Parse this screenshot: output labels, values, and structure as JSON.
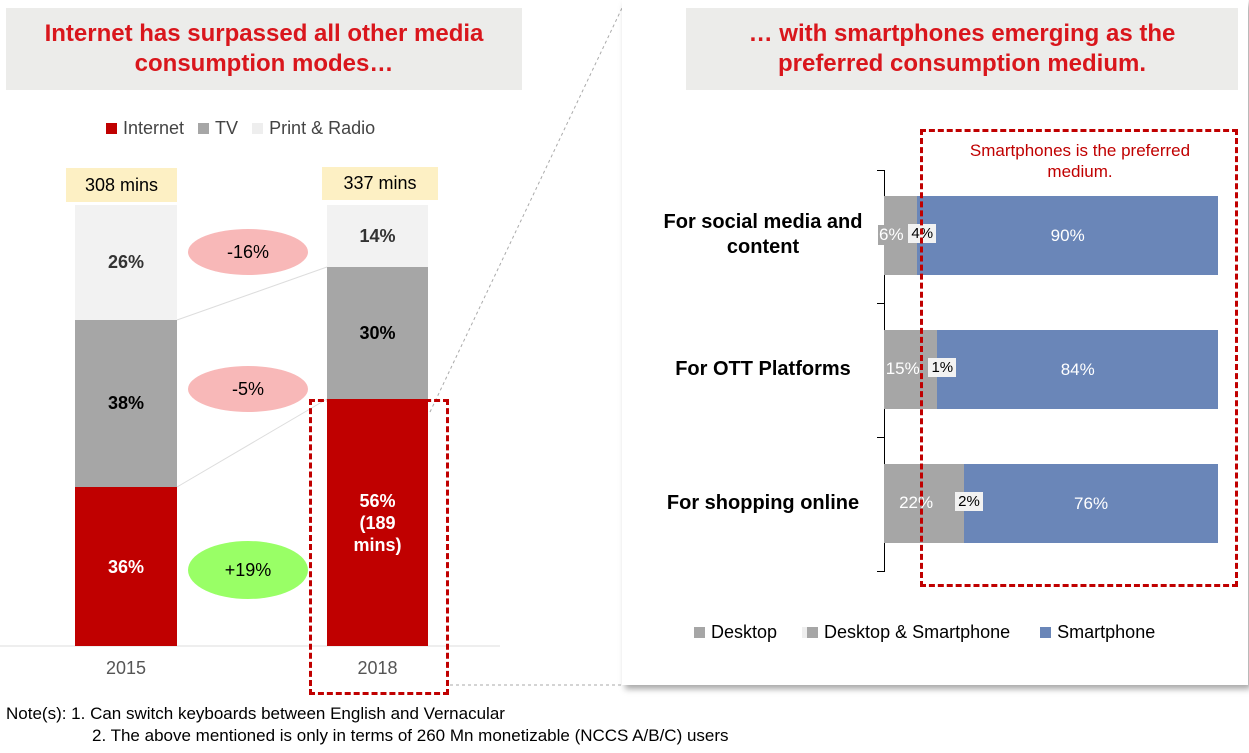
{
  "left": {
    "title": "Internet has surpassed all other media consumption modes…",
    "legend": [
      "Internet",
      "TV",
      "Print & Radio"
    ],
    "colors": {
      "Internet": "#c00000",
      "TV": "#a6a6a6",
      "Print & Radio": "#f2f2f2"
    }
  },
  "right": {
    "title": "… with smartphones emerging as the preferred consumption medium.",
    "callout": "Smartphones is the preferred medium.",
    "legend": [
      "Desktop",
      "Desktop & Smartphone",
      "Smartphone"
    ]
  },
  "notes": {
    "line1": "Note(s): 1. Can switch keyboards between English and Vernacular",
    "line2": "2. The above mentioned is only in terms of 260 Mn monetizable (NCCS A/B/C) users"
  },
  "chart_data": [
    {
      "type": "bar",
      "stacked": true,
      "title": "Internet has surpassed all other media consumption modes…",
      "categories": [
        "2015",
        "2018"
      ],
      "totals": [
        "308 mins",
        "337 mins"
      ],
      "series": [
        {
          "name": "Internet",
          "values": [
            36,
            56
          ],
          "labels": [
            "36%",
            "56% (189 mins)"
          ]
        },
        {
          "name": "TV",
          "values": [
            38,
            30
          ],
          "labels": [
            "38%",
            "30%"
          ]
        },
        {
          "name": "Print & Radio",
          "values": [
            26,
            14
          ],
          "labels": [
            "26%",
            "14%"
          ]
        }
      ],
      "changes": [
        {
          "series": "Print & Radio",
          "label": "-16%"
        },
        {
          "series": "TV",
          "label": "-5%"
        },
        {
          "series": "Internet",
          "label": "+19%"
        }
      ],
      "ylim": [
        0,
        100
      ]
    },
    {
      "type": "bar",
      "orientation": "horizontal",
      "stacked": true,
      "title": "… with smartphones emerging as the preferred consumption medium.",
      "categories": [
        "For social media and content",
        "For OTT Platforms",
        "For shopping online"
      ],
      "series": [
        {
          "name": "Desktop",
          "values": [
            6,
            15,
            22
          ],
          "color": "#a6a6a6"
        },
        {
          "name": "Desktop & Smartphone",
          "values": [
            4,
            1,
            2
          ],
          "color": "#f2f2f2"
        },
        {
          "name": "Smartphone",
          "values": [
            90,
            84,
            76
          ],
          "color": "#6a86b8"
        }
      ],
      "annotation": "Smartphones is the preferred medium.",
      "legend_position": "bottom",
      "xlim": [
        0,
        100
      ]
    }
  ]
}
